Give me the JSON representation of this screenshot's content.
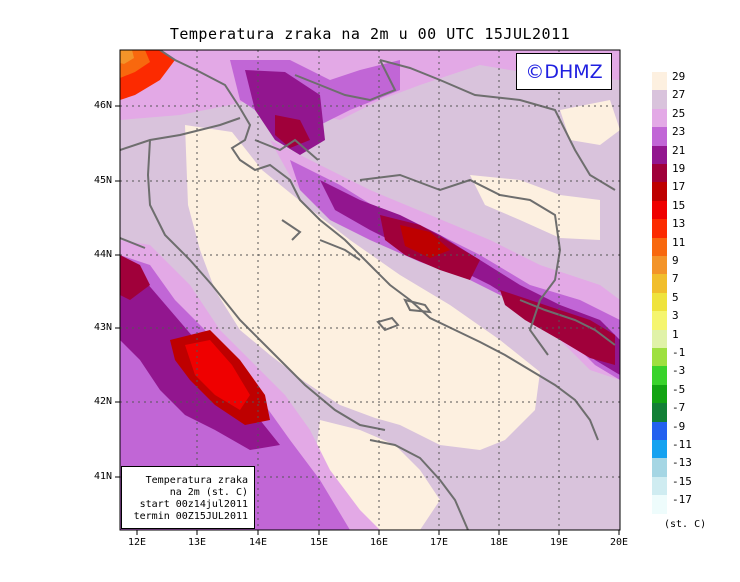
{
  "title": "Temperatura zraka na 2m u 00 UTC 15JUL2011",
  "logo_text": "©DHMZ",
  "info_box": [
    "Temperatura zraka",
    "na 2m (st. C)",
    "start 00z14jul2011",
    "termin 00Z15JUL2011"
  ],
  "lat_labels": [
    "46N",
    "45N",
    "44N",
    "43N",
    "42N",
    "41N"
  ],
  "lon_labels": [
    "12E",
    "13E",
    "14E",
    "15E",
    "16E",
    "17E",
    "18E",
    "19E",
    "20E"
  ],
  "legend": {
    "unit": "(st. C)",
    "entries": [
      {
        "label": "29",
        "color": "#fdf0e0"
      },
      {
        "label": "27",
        "color": "#d9c3dc"
      },
      {
        "label": "25",
        "color": "#e3a9e6"
      },
      {
        "label": "23",
        "color": "#c166d6"
      },
      {
        "label": "21",
        "color": "#92168f"
      },
      {
        "label": "19",
        "color": "#a0003a"
      },
      {
        "label": "17",
        "color": "#be0000"
      },
      {
        "label": "15",
        "color": "#ef0000"
      },
      {
        "label": "13",
        "color": "#fc2a00"
      },
      {
        "label": "11",
        "color": "#f8680e"
      },
      {
        "label": "9",
        "color": "#f39429"
      },
      {
        "label": "7",
        "color": "#f1be2c"
      },
      {
        "label": "5",
        "color": "#efe33c"
      },
      {
        "label": "3",
        "color": "#f5f56e"
      },
      {
        "label": "1",
        "color": "#e0f2a8"
      },
      {
        "label": "-1",
        "color": "#9ee040"
      },
      {
        "label": "-3",
        "color": "#39d32b"
      },
      {
        "label": "-5",
        "color": "#12a412"
      },
      {
        "label": "-7",
        "color": "#128036"
      },
      {
        "label": "-9",
        "color": "#2461ef"
      },
      {
        "label": "-11",
        "color": "#15a2f0"
      },
      {
        "label": "-13",
        "color": "#a5d6e4"
      },
      {
        "label": "-15",
        "color": "#cfecf1"
      },
      {
        "label": "-17",
        "color": "#eefcfc"
      }
    ]
  }
}
